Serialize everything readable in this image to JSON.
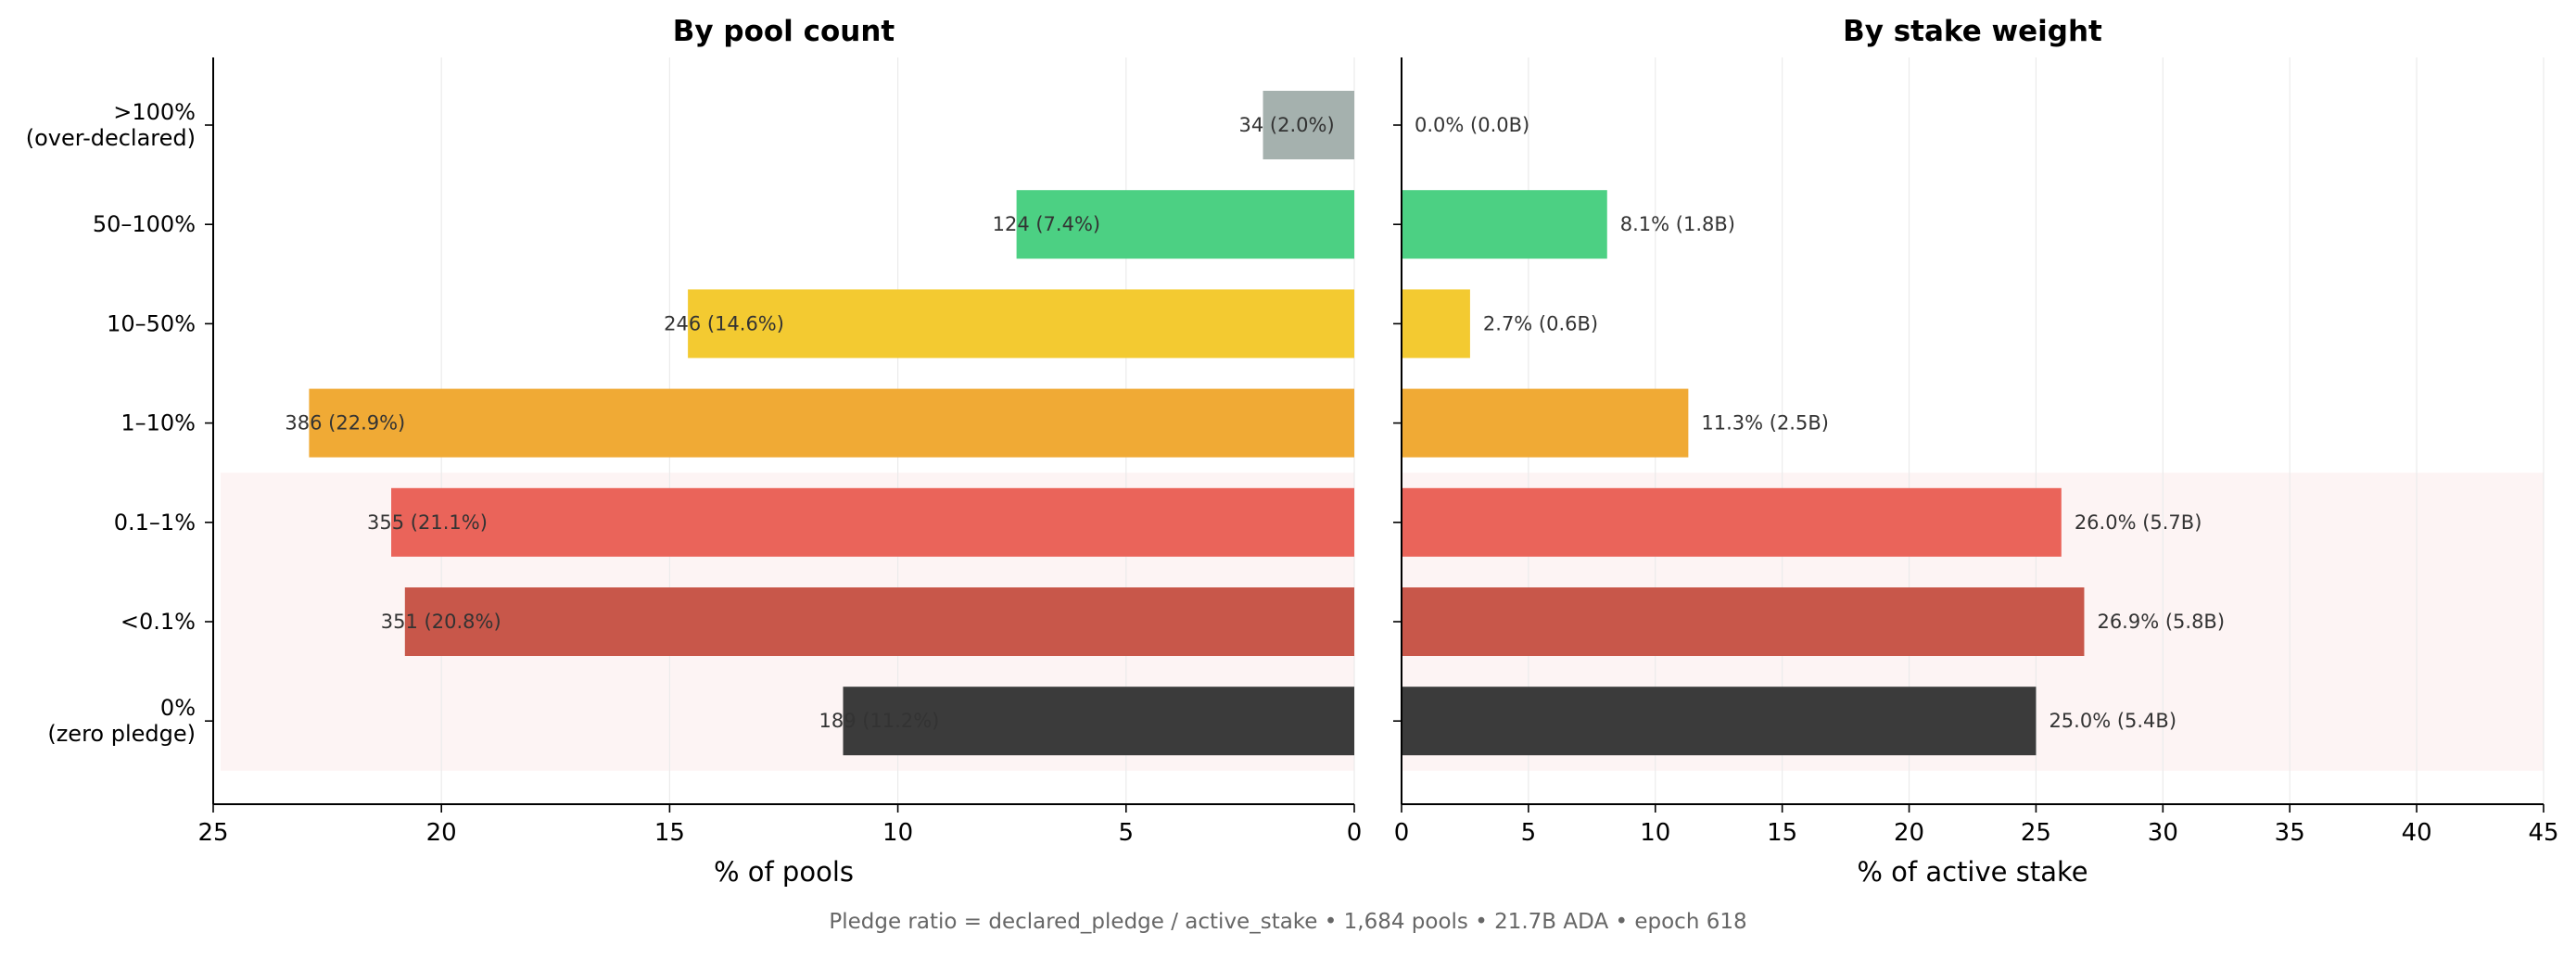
{
  "caption": "Pledge ratio = declared_pledge / active_stake  •  1,684 pools  •  21.7B ADA  •  epoch 618",
  "colors": {
    "over_declared": "#a5b1ae",
    "50_100": "#4cd083",
    "10_50": "#f3ca31",
    "1_10": "#f0aa35",
    "0_1_1": "#ea645a",
    "lt_0_1": "#c8574a",
    "zero": "#3b3b3b",
    "highlight_band": "#fdf4f4"
  },
  "chart_data": [
    {
      "type": "bar",
      "orientation": "horizontal",
      "title": "By pool count",
      "xlabel": "% of pools",
      "ylabel": "",
      "xlim": [
        25,
        0
      ],
      "x_inverted": true,
      "x_ticks": [
        "25",
        "20",
        "15",
        "10",
        "5",
        "0"
      ],
      "categories": [
        ">100%\n(over-declared)",
        "50–100%",
        "10–50%",
        "1–10%",
        "0.1–1%",
        "<0.1%",
        "0%\n(zero pledge)"
      ],
      "values": [
        2.0,
        7.4,
        14.6,
        22.9,
        21.1,
        20.8,
        11.2
      ],
      "labels": [
        "34 (2.0%)",
        "124 (7.4%)",
        "246 (14.6%)",
        "386 (22.9%)",
        "355 (21.1%)",
        "351 (20.8%)",
        "189 (11.2%)"
      ],
      "highlighted_categories": [
        "0.1–1%",
        "<0.1%",
        "0%\n(zero pledge)"
      ],
      "grid": "vertical"
    },
    {
      "type": "bar",
      "orientation": "horizontal",
      "title": "By stake weight",
      "xlabel": "% of active stake",
      "ylabel": "",
      "xlim": [
        0,
        45
      ],
      "x_ticks": [
        "0",
        "5",
        "10",
        "15",
        "20",
        "25",
        "30",
        "35",
        "40",
        "45"
      ],
      "categories": [
        ">100%\n(over-declared)",
        "50–100%",
        "10–50%",
        "1–10%",
        "0.1–1%",
        "<0.1%",
        "0%\n(zero pledge)"
      ],
      "values": [
        0.0,
        8.1,
        2.7,
        11.3,
        26.0,
        26.9,
        25.0
      ],
      "labels": [
        "0.0% (0.0B)",
        "8.1% (1.8B)",
        "2.7% (0.6B)",
        "11.3% (2.5B)",
        "26.0% (5.7B)",
        "26.9% (5.8B)",
        "25.0% (5.4B)"
      ],
      "highlighted_categories": [
        "0.1–1%",
        "<0.1%",
        "0%\n(zero pledge)"
      ],
      "grid": "vertical"
    }
  ]
}
